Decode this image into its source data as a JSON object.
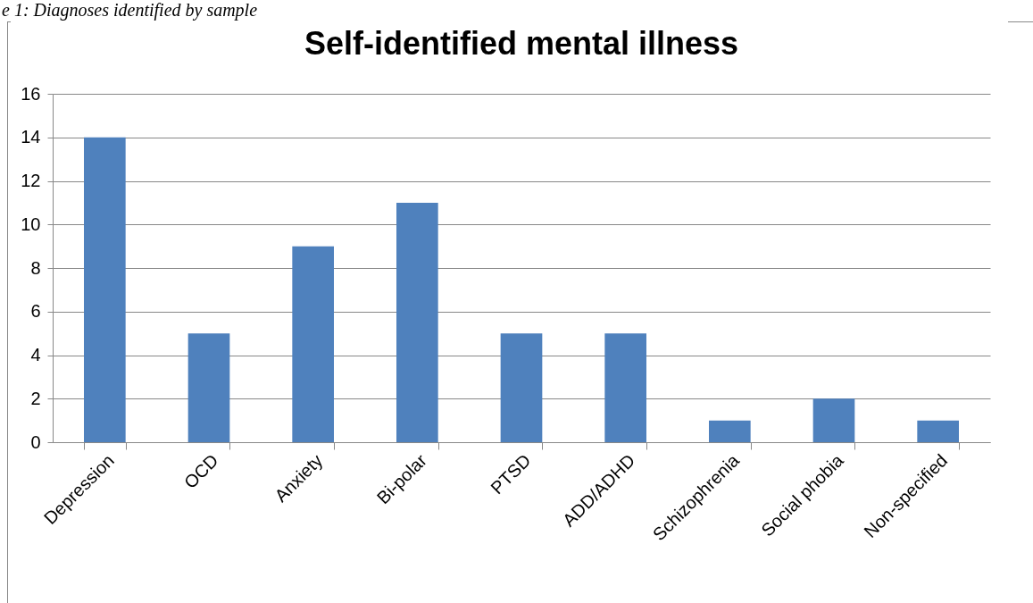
{
  "chart_data": {
    "type": "bar",
    "title": "Self-identified mental illness",
    "annotations": [
      "e 1: Diagnoses identified by sample"
    ],
    "categories": [
      "Depression",
      "OCD",
      "Anxiety",
      "Bi-polar",
      "PTSD",
      "ADD/ADHD",
      "Schizophrenia",
      "Social phobia",
      "Non-specified"
    ],
    "values": [
      14,
      5,
      9,
      11,
      5,
      5,
      1,
      2,
      1
    ],
    "color": "#4f81bd",
    "ylim": [
      0,
      16
    ],
    "yticks": [
      0,
      2,
      4,
      6,
      8,
      10,
      12,
      14,
      16
    ],
    "grid": "y"
  }
}
